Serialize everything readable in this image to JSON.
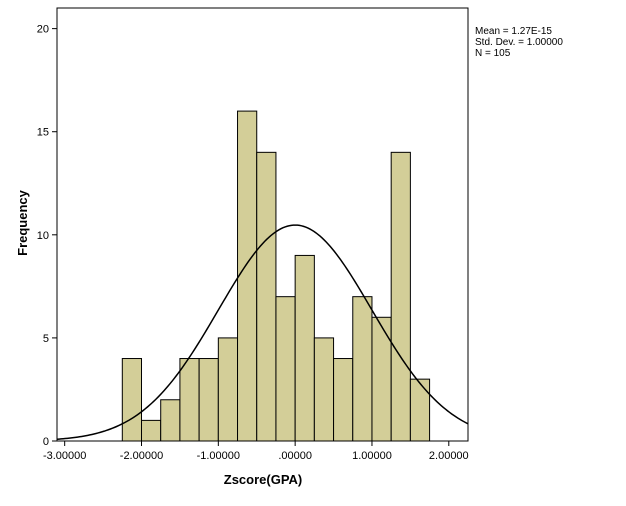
{
  "chart_data": {
    "type": "bar",
    "subtype": "histogram",
    "xlabel": "Zscore(GPA)",
    "ylabel": "Frequency",
    "xlim": [
      -3.1,
      2.25
    ],
    "ylim": [
      0,
      21
    ],
    "x_ticks": [
      -3,
      -2,
      -1,
      0,
      1,
      2
    ],
    "x_tick_labels": [
      "-3.00000",
      "-2.00000",
      "-1.00000",
      ".00000",
      "1.00000",
      "2.00000"
    ],
    "y_ticks": [
      0,
      5,
      10,
      15,
      20
    ],
    "y_tick_labels": [
      "0",
      "5",
      "10",
      "15",
      "20"
    ],
    "bins": [
      {
        "start": -2.25,
        "end": -2.0,
        "count": 4
      },
      {
        "start": -2.0,
        "end": -1.75,
        "count": 1
      },
      {
        "start": -1.75,
        "end": -1.5,
        "count": 2
      },
      {
        "start": -1.5,
        "end": -1.25,
        "count": 4
      },
      {
        "start": -1.25,
        "end": -1.0,
        "count": 4
      },
      {
        "start": -1.0,
        "end": -0.75,
        "count": 5
      },
      {
        "start": -0.75,
        "end": -0.5,
        "count": 16
      },
      {
        "start": -0.5,
        "end": -0.25,
        "count": 14
      },
      {
        "start": -0.25,
        "end": 0.0,
        "count": 7
      },
      {
        "start": 0.0,
        "end": 0.25,
        "count": 9
      },
      {
        "start": 0.25,
        "end": 0.5,
        "count": 5
      },
      {
        "start": 0.5,
        "end": 0.75,
        "count": 4
      },
      {
        "start": 0.75,
        "end": 1.0,
        "count": 7
      },
      {
        "start": 1.0,
        "end": 1.25,
        "count": 6
      },
      {
        "start": 1.25,
        "end": 1.5,
        "count": 14
      },
      {
        "start": 1.5,
        "end": 1.75,
        "count": 3
      }
    ],
    "normal_curve": {
      "mean": 0,
      "sd": 1,
      "n": 105,
      "bin_width": 0.25
    },
    "stats": {
      "mean": "Mean = 1.27E-15",
      "sd": "Std. Dev. = 1.00000",
      "n": "N = 105"
    },
    "colors": {
      "bar_fill": "#d3ce98",
      "bar_stroke": "#000000",
      "curve": "#000000",
      "axis": "#000000"
    },
    "grid": false,
    "legend": "none"
  }
}
